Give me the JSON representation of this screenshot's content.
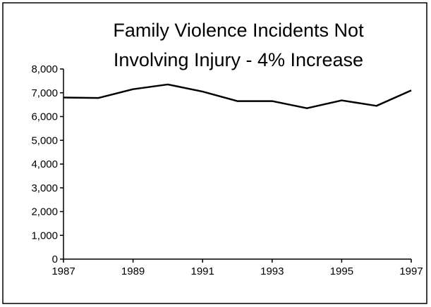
{
  "chart_data": {
    "type": "line",
    "title": [
      "Family Violence Incidents Not",
      "Involving Injury - 4% Increase"
    ],
    "x": [
      1987,
      1988,
      1989,
      1990,
      1991,
      1992,
      1993,
      1994,
      1995,
      1996,
      1997
    ],
    "series": [
      {
        "color": "#000000",
        "values": [
          6800,
          6780,
          7150,
          7350,
          7050,
          6650,
          6650,
          6350,
          6680,
          6450,
          7100
        ]
      }
    ],
    "xlim": [
      1987,
      1997
    ],
    "xticks": [
      1987,
      1989,
      1991,
      1993,
      1995,
      1997
    ],
    "ylim": [
      0,
      8000
    ],
    "yticks": [
      0,
      {
        "value": 1000,
        "label": "1,000"
      },
      {
        "value": 2000,
        "label": "2,000"
      },
      {
        "value": 3000,
        "label": "3,000"
      },
      {
        "value": 4000,
        "label": "4,000"
      },
      {
        "value": 5000,
        "label": "5,000"
      },
      {
        "value": 6000,
        "label": "6,000"
      },
      {
        "value": 7000,
        "label": "7,000"
      },
      {
        "value": 8000,
        "label": "8,000"
      }
    ],
    "grid": false
  }
}
